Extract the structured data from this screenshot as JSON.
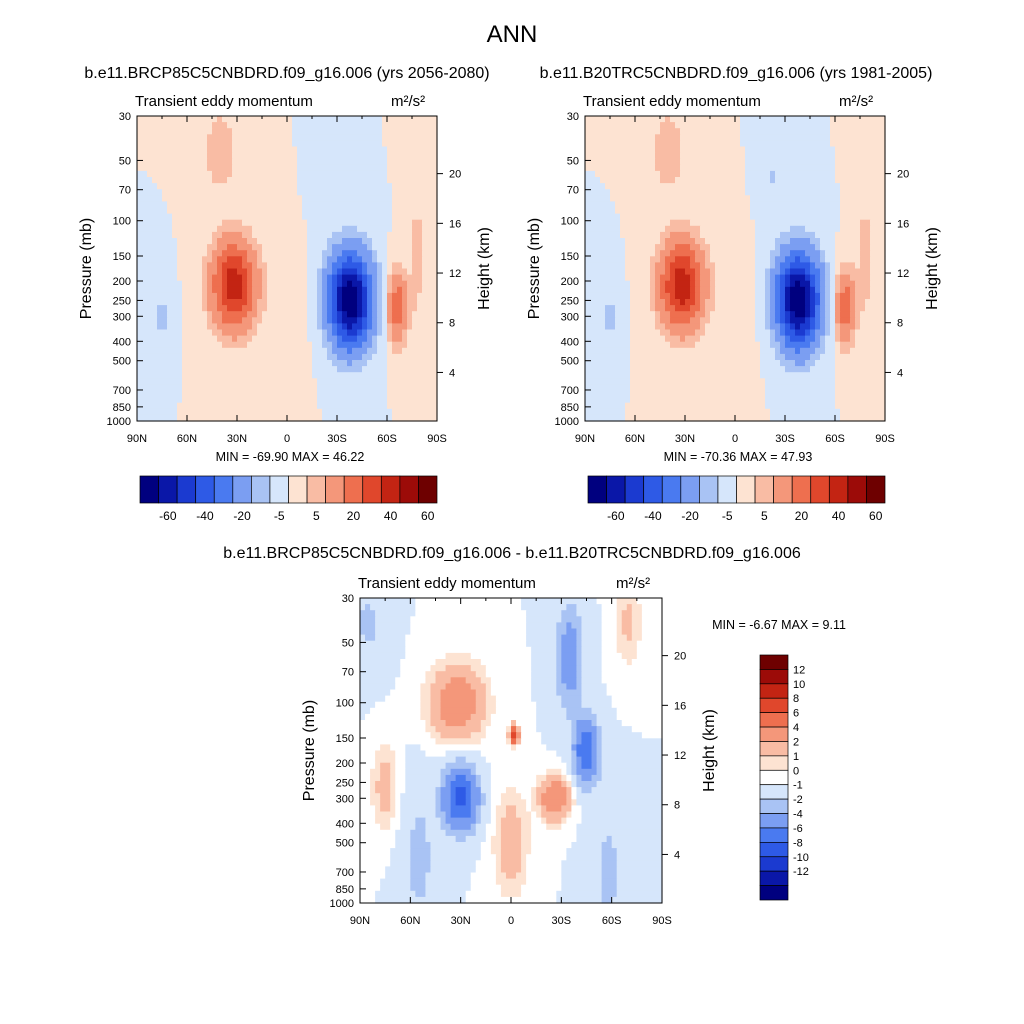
{
  "figure": {
    "title": "ANN",
    "colors": {
      "panel_levels": [
        "#00007f",
        "#0a17a8",
        "#1b3ad0",
        "#2e5ae6",
        "#4a7af0",
        "#7b9ef2",
        "#a9c3f4",
        "#d6e6fb",
        "#fde3d2",
        "#f9bca4",
        "#f4977a",
        "#ee6f4f",
        "#e0472c",
        "#c32413",
        "#9c0b08",
        "#6e0000"
      ],
      "diff_levels": [
        "#00007f",
        "#0a17a8",
        "#1b3ad0",
        "#2e5ae6",
        "#4a7af0",
        "#7b9ef2",
        "#a9c3f4",
        "#d6e6fb",
        "#ffffff",
        "#fde3d2",
        "#f9bca4",
        "#f4977a",
        "#ee6f4f",
        "#e0472c",
        "#c32413",
        "#9c0b08",
        "#6e0000"
      ]
    }
  },
  "chart_data": [
    {
      "type": "heatmap",
      "title": "b.e11.BRCP85C5CNBDRD.f09_g16.006 (yrs 2056-2080)",
      "left_string": "Transient eddy momentum",
      "units": "m²/s²",
      "ylabel": "Pressure (mb)",
      "ylabel_right": "Height (km)",
      "xlim": [
        90,
        -90
      ],
      "ylim": [
        1000,
        30
      ],
      "y_scale": "log",
      "x_ticks": [
        "90N",
        "60N",
        "30N",
        "0",
        "30S",
        "60S",
        "90S"
      ],
      "y_ticks": [
        30,
        50,
        70,
        100,
        150,
        200,
        250,
        300,
        400,
        500,
        700,
        850,
        1000
      ],
      "height_ticks_km": [
        4,
        8,
        12,
        16,
        20
      ],
      "min_max": "MIN = -69.90  MAX =  46.22",
      "colorbar": {
        "orientation": "horizontal",
        "labels": [
          "-60",
          "-40",
          "-20",
          "-5",
          "5",
          "20",
          "40",
          "60"
        ]
      },
      "features": [
        {
          "lat": 32,
          "p": 210,
          "value": 46.2
        },
        {
          "lat": -38,
          "p": 250,
          "value": -69.9
        },
        {
          "lat": -66,
          "p": 270,
          "value": 28
        }
      ]
    },
    {
      "type": "heatmap",
      "title": "b.e11.B20TRC5CNBDRD.f09_g16.006 (yrs 1981-2005)",
      "left_string": "Transient eddy momentum",
      "units": "m²/s²",
      "ylabel": "Pressure (mb)",
      "ylabel_right": "Height (km)",
      "xlim": [
        90,
        -90
      ],
      "ylim": [
        1000,
        30
      ],
      "y_scale": "log",
      "x_ticks": [
        "90N",
        "60N",
        "30N",
        "0",
        "30S",
        "60S",
        "90S"
      ],
      "y_ticks": [
        30,
        50,
        70,
        100,
        150,
        200,
        250,
        300,
        400,
        500,
        700,
        850,
        1000
      ],
      "height_ticks_km": [
        4,
        8,
        12,
        16,
        20
      ],
      "min_max": "MIN = -70.36  MAX =  47.93",
      "colorbar": {
        "orientation": "horizontal",
        "labels": [
          "-60",
          "-40",
          "-20",
          "-5",
          "5",
          "20",
          "40",
          "60"
        ]
      },
      "features": [
        {
          "lat": 32,
          "p": 210,
          "value": 47.9
        },
        {
          "lat": -38,
          "p": 250,
          "value": -70.4
        },
        {
          "lat": -66,
          "p": 280,
          "value": 27
        }
      ]
    },
    {
      "type": "heatmap",
      "title": "b.e11.BRCP85C5CNBDRD.f09_g16.006 - b.e11.B20TRC5CNBDRD.f09_g16.006",
      "left_string": "Transient eddy momentum",
      "units": "m²/s²",
      "ylabel": "Pressure (mb)",
      "ylabel_right": "Height (km)",
      "xlim": [
        90,
        -90
      ],
      "ylim": [
        1000,
        30
      ],
      "y_scale": "log",
      "x_ticks": [
        "90N",
        "60N",
        "30N",
        "0",
        "30S",
        "60S",
        "90S"
      ],
      "y_ticks": [
        30,
        50,
        70,
        100,
        150,
        200,
        250,
        300,
        400,
        500,
        700,
        850,
        1000
      ],
      "height_ticks_km": [
        4,
        8,
        12,
        16,
        20
      ],
      "min_max": "MIN =  -6.67  MAX =   9.11",
      "colorbar": {
        "orientation": "vertical",
        "labels": [
          "12",
          "10",
          "8",
          "6",
          "4",
          "2",
          "1",
          "0",
          "-1",
          "-2",
          "-4",
          "-6",
          "-8",
          "-10",
          "-12"
        ]
      },
      "features": [
        {
          "lat": 30,
          "p": 300,
          "value": -6.67
        },
        {
          "lat": -45,
          "p": 170,
          "value": -6
        },
        {
          "lat": 35,
          "p": 100,
          "value": 3
        },
        {
          "lat": -25,
          "p": 300,
          "value": 4
        },
        {
          "lat": 0,
          "p": 150,
          "value": 9.11
        }
      ]
    }
  ]
}
